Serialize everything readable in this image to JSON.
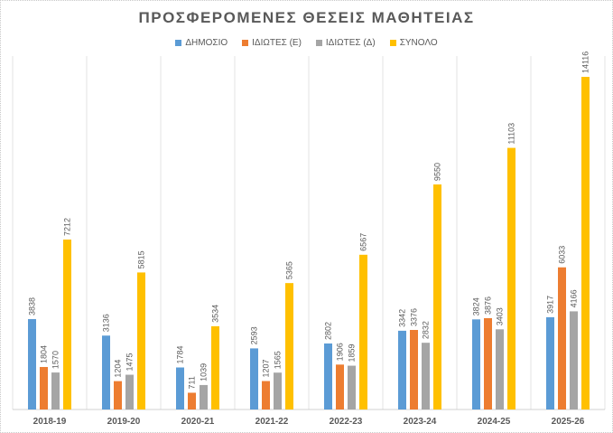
{
  "chart_data": {
    "type": "bar",
    "title": "ΠΡΟΣΦΕΡΟΜΕΝΕΣ ΘΕΣΕΙΣ ΜΑΘΗΤΕΙΑΣ",
    "xlabel": "",
    "ylabel": "",
    "ylim": [
      0,
      15000
    ],
    "grid": "vertical separators between categories",
    "legend_position": "top",
    "categories": [
      "2018-19",
      "2019-20",
      "2020-21",
      "2021-22",
      "2022-23",
      "2023-24",
      "2024-25",
      "2025-26"
    ],
    "series": [
      {
        "name": "ΔΗΜΟΣΙΟ",
        "color": "#5b9bd5",
        "values": [
          3838,
          3136,
          1784,
          2593,
          2802,
          3342,
          3824,
          3917
        ]
      },
      {
        "name": "ΙΔΙΩΤΕΣ (Ε)",
        "color": "#ed7d31",
        "values": [
          1804,
          1204,
          711,
          1207,
          1906,
          3376,
          3876,
          6033
        ]
      },
      {
        "name": "ΙΔΙΩΤΕΣ (Δ)",
        "color": "#a5a5a5",
        "values": [
          1570,
          1475,
          1039,
          1565,
          1859,
          2832,
          3403,
          4166
        ]
      },
      {
        "name": "ΣΥΝΟΛΟ",
        "color": "#ffc000",
        "values": [
          7212,
          5815,
          3534,
          5365,
          6567,
          9550,
          11103,
          14116
        ]
      }
    ]
  }
}
